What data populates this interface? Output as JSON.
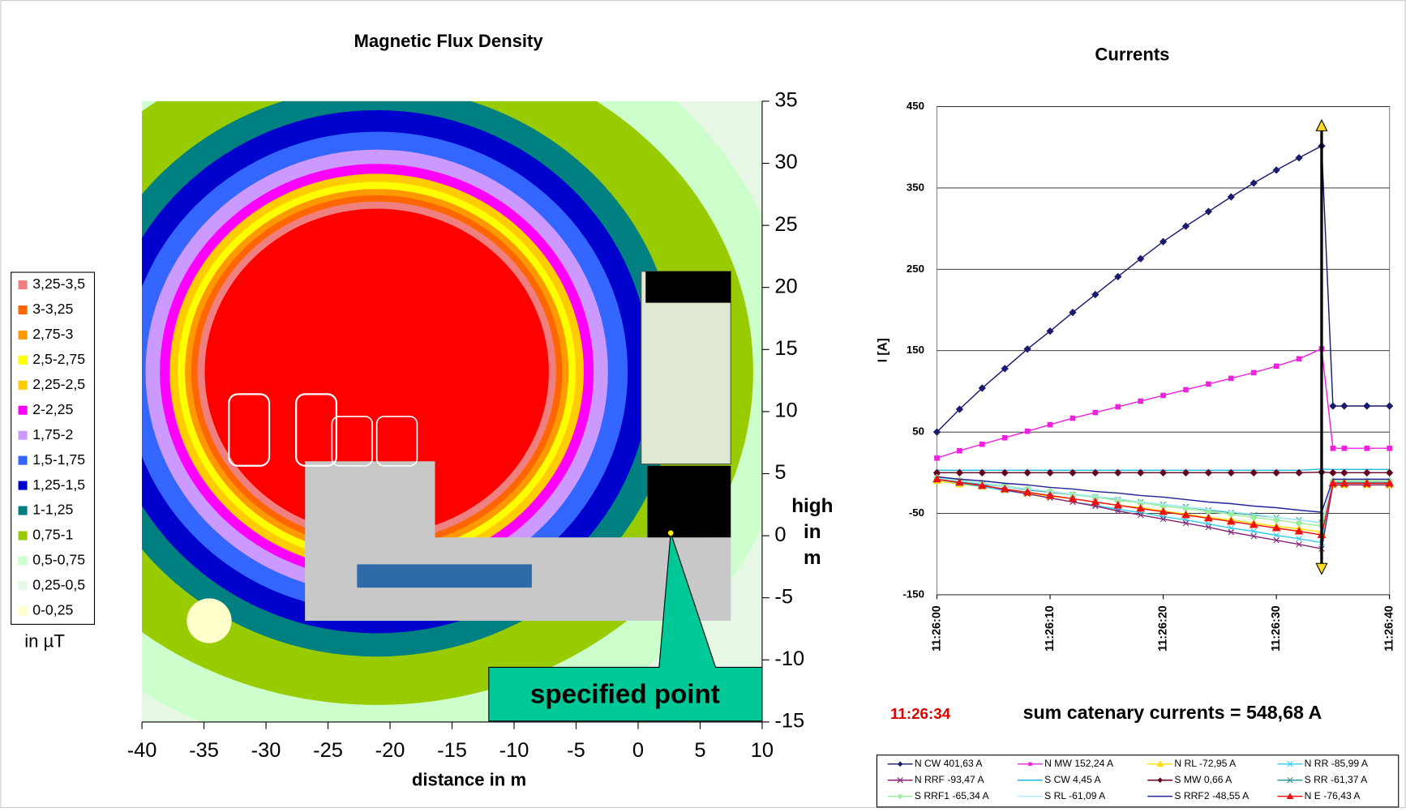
{
  "chart_data": [
    {
      "type": "heatmap",
      "title": "Magnetic Flux Density",
      "xlabel": "distance in m",
      "ylabel": [
        "high",
        "in",
        "m"
      ],
      "xlim": [
        -40,
        10
      ],
      "xticks": [
        -40,
        -35,
        -30,
        -25,
        -20,
        -15,
        -10,
        -5,
        0,
        5,
        10
      ],
      "ylim": [
        -15,
        35
      ],
      "yticks": [
        -15,
        -10,
        -5,
        0,
        5,
        10,
        15,
        20,
        25,
        30,
        35
      ],
      "legend": [
        {
          "label": "3,25-3,5",
          "color": "#f08080"
        },
        {
          "label": "3-3,25",
          "color": "#ff6600"
        },
        {
          "label": "2,75-3",
          "color": "#ff9900"
        },
        {
          "label": "2,5-2,75",
          "color": "#ffff00"
        },
        {
          "label": "2,25-2,5",
          "color": "#ffcc00"
        },
        {
          "label": "2-2,25",
          "color": "#ff00ff"
        },
        {
          "label": "1,75-2",
          "color": "#cc99ff"
        },
        {
          "label": "1,5-1,75",
          "color": "#3366ff"
        },
        {
          "label": "1,25-1,5",
          "color": "#0000cc"
        },
        {
          "label": "1-1,25",
          "color": "#008080"
        },
        {
          "label": "0,75-1",
          "color": "#99cc00"
        },
        {
          "label": "0,5-0,75",
          "color": "#ccffcc"
        },
        {
          "label": "0,25-0,5",
          "color": "#e6f7e6"
        },
        {
          "label": "0-0,25",
          "color": "#ffffcc"
        }
      ],
      "legend_unit": "in µT",
      "annotation": "specified point"
    },
    {
      "type": "line",
      "title": "Currents",
      "ylabel": "I [A]",
      "x": [
        "11:26:00",
        "11:26:02",
        "11:26:04",
        "11:26:06",
        "11:26:08",
        "11:26:10",
        "11:26:12",
        "11:26:14",
        "11:26:16",
        "11:26:18",
        "11:26:20",
        "11:26:22",
        "11:26:24",
        "11:26:26",
        "11:26:28",
        "11:26:30",
        "11:26:32",
        "11:26:34",
        "11:26:35",
        "11:26:36",
        "11:26:38",
        "11:26:40"
      ],
      "xlim": [
        "11:26:00",
        "11:26:40"
      ],
      "xticks": [
        "11:26:00",
        "11:26:10",
        "11:26:20",
        "11:26:30",
        "11:26:40"
      ],
      "ylim": [
        -150,
        450
      ],
      "yticks": [
        -150,
        -50,
        50,
        150,
        250,
        350,
        450
      ],
      "grid": true,
      "series": [
        {
          "name": "N CW 401,63 A",
          "color": "#1a1a6e",
          "marker": "diamond",
          "values": [
            50,
            78,
            104,
            128,
            152,
            174,
            197,
            219,
            241,
            263,
            284,
            303,
            321,
            339,
            356,
            372,
            387,
            401.63,
            82,
            82,
            82,
            82
          ]
        },
        {
          "name": "N MW 152,24 A",
          "color": "#ee22dd",
          "marker": "square",
          "values": [
            18,
            27,
            35,
            43,
            51,
            59,
            67,
            74,
            81,
            88,
            95,
            102,
            109,
            116,
            123,
            131,
            140,
            152.24,
            30,
            30,
            30,
            30
          ]
        },
        {
          "name": "N RL -72,95 A",
          "color": "#ffdd00",
          "marker": "triangle",
          "values": [
            -10,
            -14,
            -17,
            -21,
            -25,
            -29,
            -32,
            -36,
            -40,
            -43,
            -47,
            -51,
            -55,
            -58,
            -62,
            -66,
            -69,
            -72.95,
            -15,
            -15,
            -15,
            -15
          ]
        },
        {
          "name": "N RR -85,99 A",
          "color": "#33ccee",
          "marker": "cross",
          "values": [
            -8,
            -13,
            -17,
            -22,
            -26,
            -31,
            -36,
            -40,
            -45,
            -49,
            -54,
            -58,
            -63,
            -68,
            -72,
            -77,
            -81,
            -85.99,
            -12,
            -12,
            -12,
            -12
          ]
        },
        {
          "name": "N RRF -93,47 A",
          "color": "#882277",
          "marker": "cross",
          "values": [
            -5,
            -10,
            -15,
            -21,
            -26,
            -31,
            -36,
            -41,
            -47,
            -52,
            -57,
            -62,
            -67,
            -73,
            -78,
            -83,
            -88,
            -93.47,
            -15,
            -15,
            -15,
            -15
          ]
        },
        {
          "name": "S CW 4,45 A",
          "color": "#22bbdd",
          "marker": "none",
          "values": [
            3,
            3,
            3,
            3,
            3,
            3,
            3,
            3,
            3,
            3,
            3,
            3,
            3,
            3,
            3,
            3,
            3,
            4.45,
            4,
            4,
            4,
            4
          ]
        },
        {
          "name": "S MW 0,66 A",
          "color": "#660022",
          "marker": "diamond",
          "values": [
            0,
            0,
            0,
            0,
            0,
            0,
            0,
            0,
            0,
            0,
            0,
            0,
            0,
            0,
            0,
            0,
            0,
            0.66,
            0,
            0,
            0,
            0
          ]
        },
        {
          "name": "S RR -61,37 A",
          "color": "#339999",
          "marker": "cross",
          "values": [
            -8,
            -11,
            -14,
            -17,
            -21,
            -24,
            -27,
            -30,
            -33,
            -36,
            -39,
            -42,
            -46,
            -49,
            -52,
            -55,
            -58,
            -61.37,
            -12,
            -12,
            -12,
            -12
          ]
        },
        {
          "name": "S RRF1 -65,34 A",
          "color": "#99ee99",
          "marker": "diamond",
          "values": [
            -6,
            -9,
            -13,
            -16,
            -20,
            -23,
            -27,
            -30,
            -34,
            -37,
            -41,
            -44,
            -48,
            -51,
            -55,
            -58,
            -62,
            -65.34,
            -10,
            -10,
            -10,
            -10
          ]
        },
        {
          "name": "S RL -61,09 A",
          "color": "#aaeeff",
          "marker": "none",
          "values": [
            -7,
            -10,
            -13,
            -17,
            -20,
            -23,
            -26,
            -29,
            -32,
            -36,
            -39,
            -42,
            -45,
            -48,
            -51,
            -55,
            -58,
            -61.09,
            -13,
            -13,
            -13,
            -13
          ]
        },
        {
          "name": "S RRF2 -48,55 A",
          "color": "#222299",
          "marker": "none",
          "values": [
            -5,
            -8,
            -10,
            -13,
            -15,
            -18,
            -20,
            -23,
            -25,
            -28,
            -30,
            -33,
            -36,
            -38,
            -41,
            -43,
            -46,
            -48.55,
            -8,
            -8,
            -8,
            -8
          ]
        },
        {
          "name": "N E -76,43 A",
          "color": "#ee1111",
          "marker": "triangle",
          "values": [
            -8,
            -12,
            -16,
            -20,
            -24,
            -28,
            -32,
            -36,
            -40,
            -44,
            -48,
            -52,
            -56,
            -60,
            -64,
            -68,
            -72,
            -76.43,
            -13,
            -13,
            -13,
            -13
          ]
        }
      ],
      "time_label": "11:26:34",
      "annotation": "sum catenary currents = 548,68 A"
    }
  ]
}
